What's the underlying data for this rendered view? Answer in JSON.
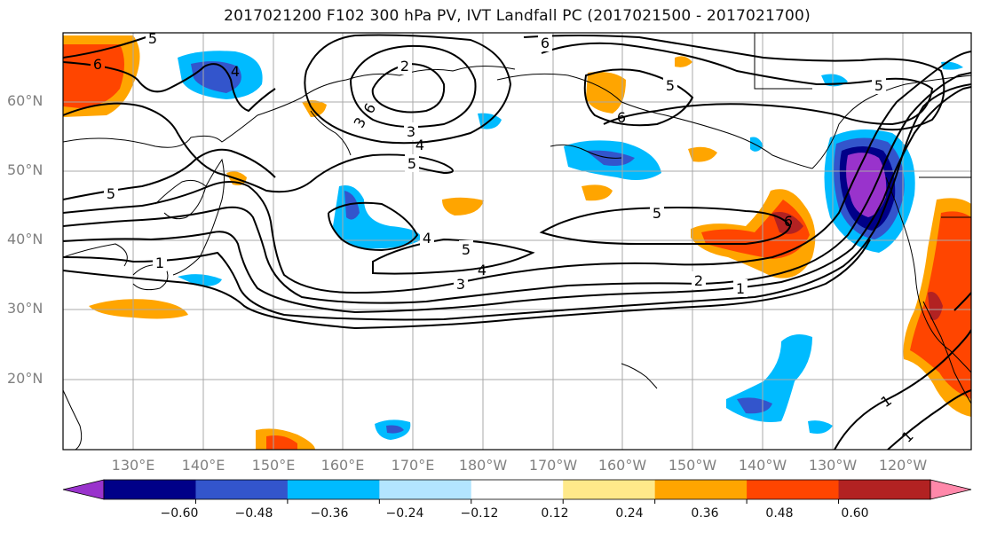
{
  "title": "2017021200 F102 300 hPa PV, IVT Landfall PC (2017021500 - 2017021700)",
  "map": {
    "lat_labels": [
      "60°N",
      "50°N",
      "40°N",
      "30°N",
      "20°N"
    ],
    "lon_labels": [
      "130°E",
      "140°E",
      "150°E",
      "160°E",
      "170°E",
      "180°W",
      "170°W",
      "160°W",
      "150°W",
      "140°W",
      "130°W",
      "120°W"
    ],
    "contour_labels": [
      "6",
      "5",
      "4",
      "5",
      "3",
      "6",
      "2",
      "6",
      "3",
      "4",
      "5",
      "6",
      "5",
      "5",
      "4",
      "5",
      "4",
      "3",
      "1",
      "5",
      "6",
      "2",
      "1",
      "1",
      "1"
    ],
    "contour_color": "#000000"
  },
  "colorbar": {
    "ticks": [
      "−0.60",
      "−0.48",
      "−0.36",
      "−0.24",
      "−0.12",
      "0.12",
      "0.24",
      "0.36",
      "0.48",
      "0.60"
    ],
    "colors": [
      "#9933cc",
      "#000088",
      "#3355cc",
      "#00bbff",
      "#b3e5ff",
      "#ffffff",
      "#ffe98a",
      "#ffa500",
      "#ff4500",
      "#b22222",
      "#ff88aa"
    ]
  }
}
